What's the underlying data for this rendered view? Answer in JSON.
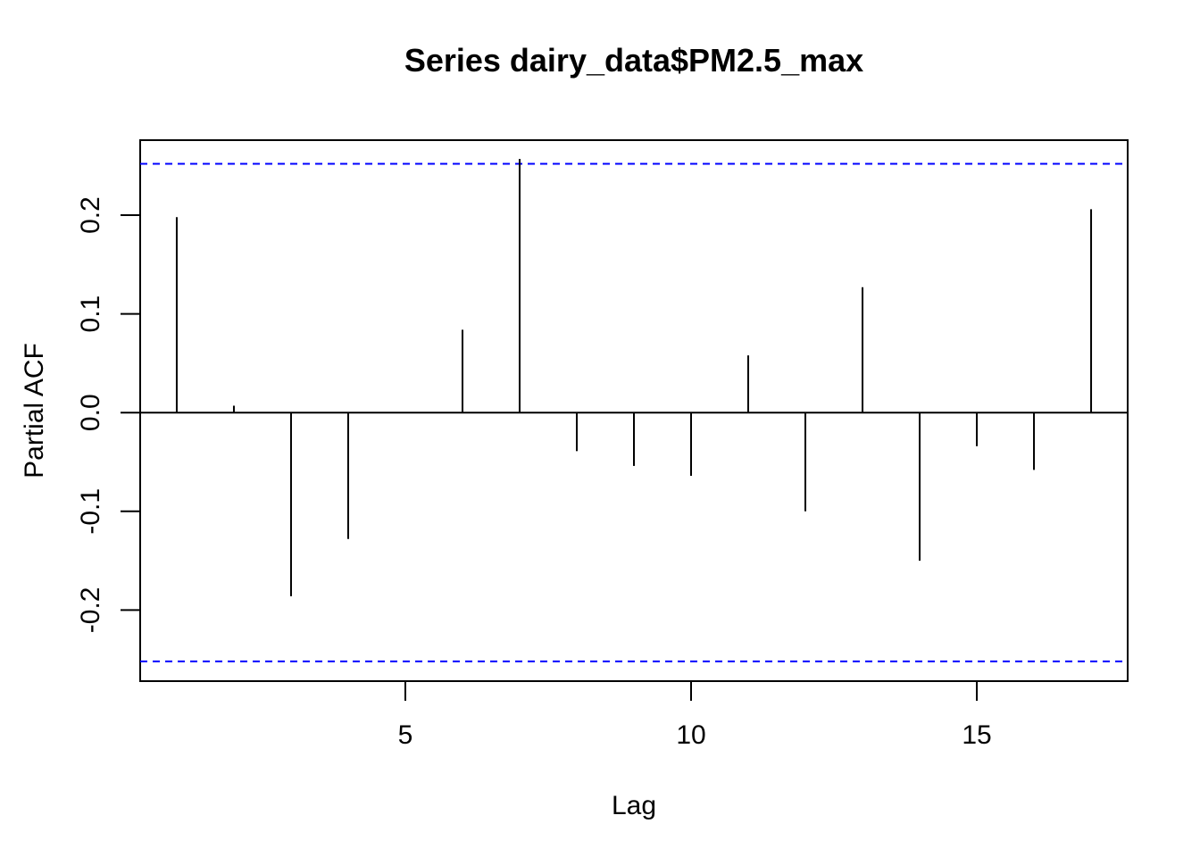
{
  "chart_data": {
    "type": "bar",
    "style": "pacf-spikes",
    "title": "Series  dairy_data$PM2.5_max",
    "xlabel": "Lag",
    "ylabel": "Partial ACF",
    "x": [
      1,
      2,
      3,
      4,
      5,
      6,
      7,
      8,
      9,
      10,
      11,
      12,
      13,
      14,
      15,
      16,
      17
    ],
    "values": [
      0.198,
      0.007,
      -0.186,
      -0.128,
      0.0,
      0.084,
      0.257,
      -0.039,
      -0.054,
      -0.064,
      0.058,
      -0.1,
      0.127,
      -0.15,
      -0.034,
      -0.058,
      0.206
    ],
    "confidence_bound": 0.252,
    "xlim": [
      0.36,
      17.64
    ],
    "ylim": [
      -0.272,
      0.276
    ],
    "x_ticks": [
      5,
      10,
      15
    ],
    "x_tick_labels": [
      "5",
      "10",
      "15"
    ],
    "y_ticks": [
      -0.2,
      -0.1,
      0.0,
      0.1,
      0.2
    ],
    "y_tick_labels": [
      "-0.2",
      "-0.1",
      "0.0",
      "0.1",
      "0.2"
    ],
    "grid": false,
    "colors": {
      "spikes": "#000000",
      "confidence": "#0000ff",
      "zero_line": "#000000"
    }
  }
}
